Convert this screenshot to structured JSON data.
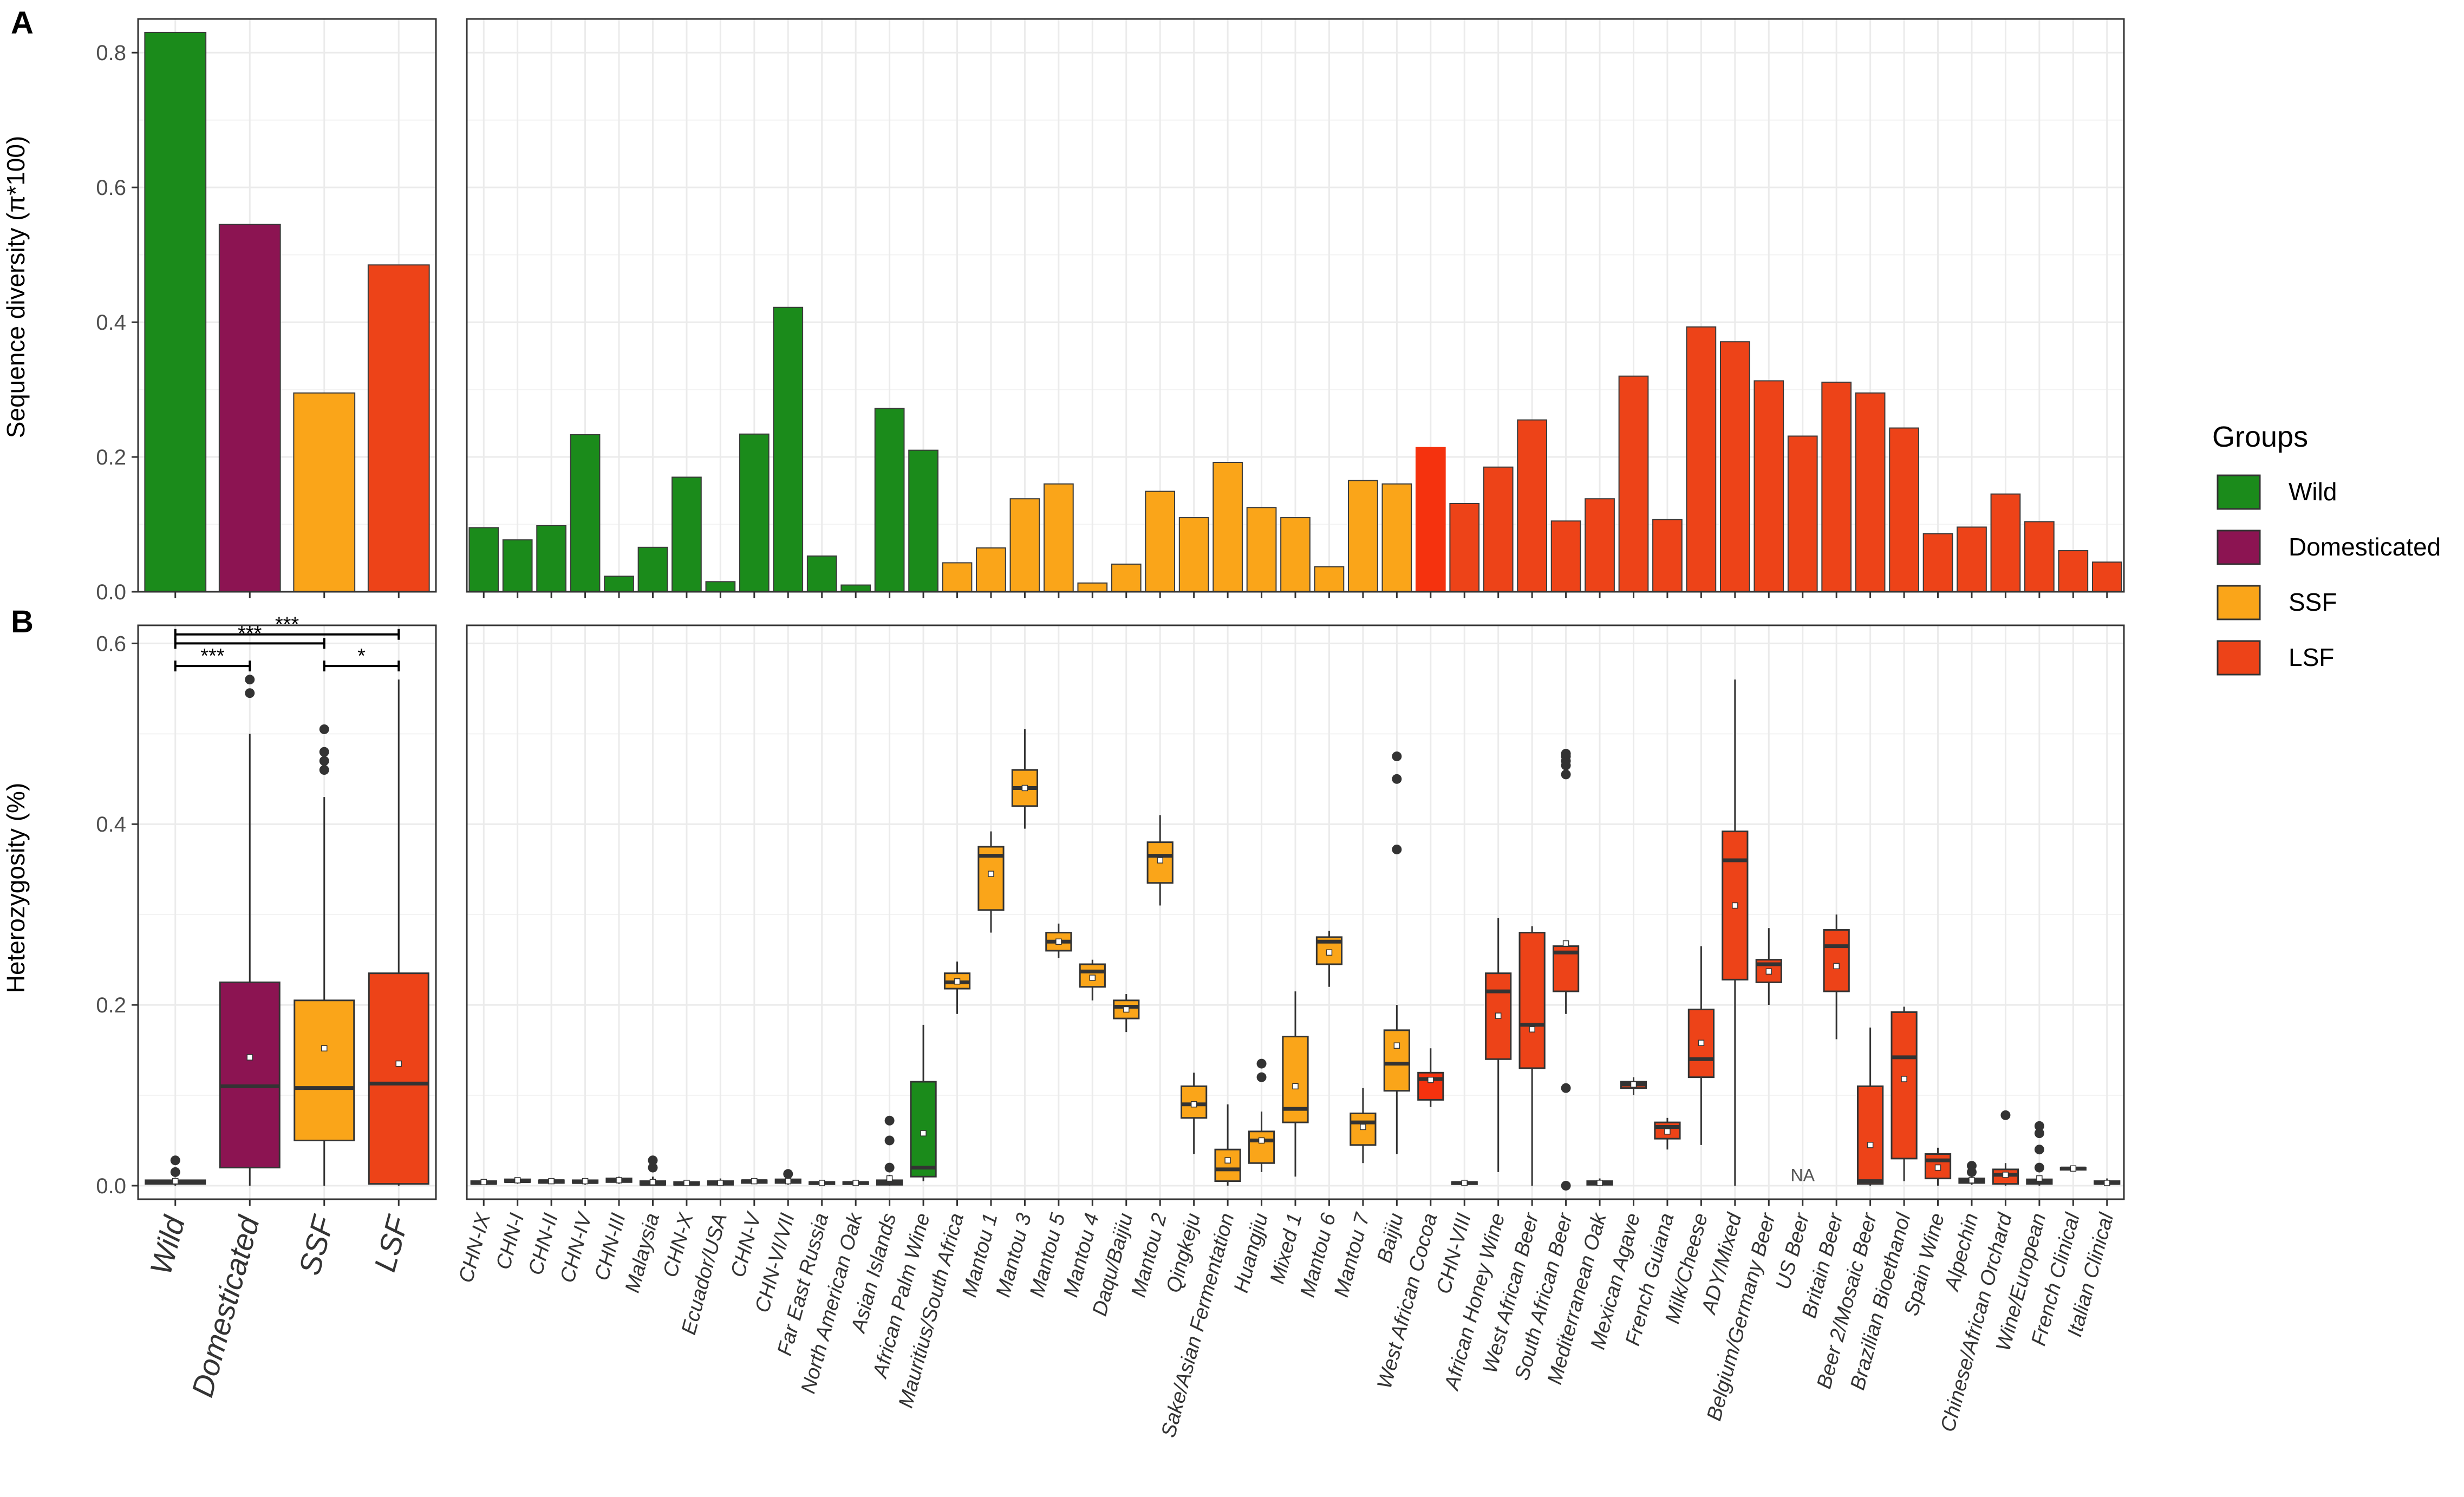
{
  "chart_data": [
    {
      "type": "bar",
      "panel_label": "A",
      "ylabel": "Sequence diversity (π*100)",
      "ylim": [
        0,
        0.85
      ],
      "yticks": [
        "0.0",
        "0.2",
        "0.4",
        "0.6",
        "0.8"
      ],
      "grid": true,
      "categories": [
        "Wild",
        "Domesticated",
        "SSF",
        "LSF"
      ],
      "values": [
        0.83,
        0.545,
        0.295,
        0.485
      ]
    },
    {
      "type": "bar",
      "ylim": [
        0,
        0.85
      ],
      "grid": true,
      "categories": [
        "CHN-IX",
        "CHN-I",
        "CHN-II",
        "CHN-IV",
        "CHN-III",
        "Malaysia",
        "CHN-X",
        "Ecuador/USA",
        "CHN-V",
        "CHN-VI/VII",
        "Far East Russia",
        "North American Oak",
        "Asian Islands",
        "African Palm Wine",
        "Mauritius/South Africa",
        "Mantou 1",
        "Mantou 3",
        "Mantou 5",
        "Mantou 4",
        "Daqu/Baijiu",
        "Mantou 2",
        "Qingkeju",
        "Sake/Asian Fermentation",
        "Huangjiu",
        "Mixed 1",
        "Mantou 6",
        "Mantou 7",
        "Baijiu",
        "West African Cocoa",
        "CHN-VIII",
        "African Honey Wine",
        "West African Beer",
        "South African Beer",
        "Mediterranean Oak",
        "Mexican Agave",
        "French Guiana",
        "Milk/Cheese",
        "ADY/Mixed",
        "Belgium/Germany Beer",
        "US Beer",
        "Britain Beer",
        "Beer 2/Mosaic Beer",
        "Brazilian Bioethanol",
        "Spain Wine",
        "Alpechin",
        "Chinese/African Orchard",
        "Wine/European",
        "French Clinical",
        "Italian Clinical"
      ],
      "values": [
        0.095,
        0.077,
        0.098,
        0.233,
        0.023,
        0.066,
        0.17,
        0.015,
        0.234,
        0.422,
        0.053,
        0.01,
        0.272,
        0.21,
        0.043,
        0.065,
        0.138,
        0.16,
        0.013,
        0.041,
        0.149,
        0.11,
        0.192,
        0.125,
        0.11,
        0.037,
        0.165,
        0.16,
        0.214,
        0.131,
        0.185,
        0.255,
        0.105,
        0.138,
        0.32,
        0.107,
        0.393,
        0.371,
        0.313,
        0.231,
        0.311,
        0.295,
        0.243,
        0.086,
        0.096,
        0.145,
        0.104,
        0.061,
        0.044
      ],
      "groups": [
        "Wild",
        "Wild",
        "Wild",
        "Wild",
        "Wild",
        "Wild",
        "Wild",
        "Wild",
        "Wild",
        "Wild",
        "Wild",
        "Wild",
        "Wild",
        "Wild",
        "SSF",
        "SSF",
        "SSF",
        "SSF",
        "SSF",
        "SSF",
        "SSF",
        "SSF",
        "SSF",
        "SSF",
        "SSF",
        "SSF",
        "SSF",
        "SSF",
        "LSF",
        "LSF",
        "LSF",
        "LSF",
        "LSF",
        "LSF",
        "LSF",
        "LSF",
        "LSF",
        "LSF",
        "LSF",
        "LSF",
        "LSF",
        "LSF",
        "LSF",
        "LSF",
        "LSF",
        "LSF",
        "LSF",
        "LSF",
        "LSF"
      ]
    },
    {
      "type": "box",
      "panel_label": "B",
      "ylabel": "Heterozygosity (%)",
      "ylim": [
        -0.015,
        0.62
      ],
      "yticks": [
        "0.0",
        "0.2",
        "0.4",
        "0.6"
      ],
      "grid": true,
      "categories": [
        "Wild",
        "Domesticated",
        "SSF",
        "LSF"
      ],
      "boxes": [
        {
          "min": 0,
          "q1": 0.002,
          "median": 0.004,
          "q3": 0.006,
          "max": 0.009,
          "mean": 0.005,
          "outliers": [
            0.015,
            0.028
          ]
        },
        {
          "min": 0,
          "q1": 0.02,
          "median": 0.11,
          "q3": 0.225,
          "max": 0.5,
          "mean": 0.142,
          "outliers": [
            0.545,
            0.56
          ]
        },
        {
          "min": 0,
          "q1": 0.05,
          "median": 0.108,
          "q3": 0.205,
          "max": 0.43,
          "mean": 0.152,
          "outliers": [
            0.46,
            0.47,
            0.48,
            0.505
          ]
        },
        {
          "min": 0,
          "q1": 0.002,
          "median": 0.113,
          "q3": 0.235,
          "max": 0.56,
          "mean": 0.135,
          "outliers": []
        }
      ],
      "significance": [
        {
          "from": 0,
          "to": 3,
          "label": "***",
          "y": 0.61
        },
        {
          "from": 0,
          "to": 2,
          "label": "***",
          "y": 0.6
        },
        {
          "from": 0,
          "to": 1,
          "label": "***",
          "y": 0.575
        },
        {
          "from": 2,
          "to": 3,
          "label": "*",
          "y": 0.575
        }
      ]
    },
    {
      "type": "box",
      "ylim": [
        -0.015,
        0.62
      ],
      "grid": true,
      "na_label": "NA",
      "boxes": [
        {
          "min": 0.001,
          "q1": 0.002,
          "median": 0.003,
          "q3": 0.005,
          "max": 0.007,
          "mean": 0.004,
          "outliers": []
        },
        {
          "min": 0.002,
          "q1": 0.004,
          "median": 0.005,
          "q3": 0.007,
          "max": 0.009,
          "mean": 0.006,
          "outliers": []
        },
        {
          "min": 0.002,
          "q1": 0.003,
          "median": 0.005,
          "q3": 0.006,
          "max": 0.008,
          "mean": 0.005,
          "outliers": []
        },
        {
          "min": 0.001,
          "q1": 0.003,
          "median": 0.004,
          "q3": 0.006,
          "max": 0.008,
          "mean": 0.005,
          "outliers": []
        },
        {
          "min": 0.002,
          "q1": 0.004,
          "median": 0.006,
          "q3": 0.008,
          "max": 0.01,
          "mean": 0.006,
          "outliers": []
        },
        {
          "min": 0,
          "q1": 0.001,
          "median": 0.002,
          "q3": 0.005,
          "max": 0.01,
          "mean": 0.004,
          "outliers": [
            0.02,
            0.028
          ]
        },
        {
          "min": 0,
          "q1": 0.001,
          "median": 0.002,
          "q3": 0.004,
          "max": 0.006,
          "mean": 0.003,
          "outliers": []
        },
        {
          "min": 0,
          "q1": 0.001,
          "median": 0.003,
          "q3": 0.005,
          "max": 0.008,
          "mean": 0.003,
          "outliers": []
        },
        {
          "min": 0.002,
          "q1": 0.003,
          "median": 0.005,
          "q3": 0.006,
          "max": 0.008,
          "mean": 0.005,
          "outliers": []
        },
        {
          "min": 0.001,
          "q1": 0.003,
          "median": 0.005,
          "q3": 0.007,
          "max": 0.009,
          "mean": 0.005,
          "outliers": [
            0.013
          ]
        },
        {
          "min": 0.001,
          "q1": 0.002,
          "median": 0.003,
          "q3": 0.004,
          "max": 0.005,
          "mean": 0.003,
          "outliers": []
        },
        {
          "min": 0.001,
          "q1": 0.002,
          "median": 0.003,
          "q3": 0.004,
          "max": 0.005,
          "mean": 0.003,
          "outliers": []
        },
        {
          "min": 0,
          "q1": 0.001,
          "median": 0.003,
          "q3": 0.006,
          "max": 0.012,
          "mean": 0.008,
          "outliers": [
            0.02,
            0.05,
            0.072
          ]
        },
        {
          "min": 0.005,
          "q1": 0.01,
          "median": 0.02,
          "q3": 0.115,
          "max": 0.178,
          "mean": 0.058,
          "outliers": []
        },
        {
          "min": 0.19,
          "q1": 0.218,
          "median": 0.225,
          "q3": 0.235,
          "max": 0.248,
          "mean": 0.226,
          "outliers": []
        },
        {
          "min": 0.28,
          "q1": 0.305,
          "median": 0.365,
          "q3": 0.375,
          "max": 0.392,
          "mean": 0.345,
          "outliers": []
        },
        {
          "min": 0.395,
          "q1": 0.42,
          "median": 0.44,
          "q3": 0.46,
          "max": 0.505,
          "mean": 0.44,
          "outliers": []
        },
        {
          "min": 0.252,
          "q1": 0.26,
          "median": 0.27,
          "q3": 0.28,
          "max": 0.29,
          "mean": 0.27,
          "outliers": []
        },
        {
          "min": 0.205,
          "q1": 0.22,
          "median": 0.237,
          "q3": 0.245,
          "max": 0.25,
          "mean": 0.23,
          "outliers": []
        },
        {
          "min": 0.17,
          "q1": 0.185,
          "median": 0.198,
          "q3": 0.205,
          "max": 0.212,
          "mean": 0.195,
          "outliers": []
        },
        {
          "min": 0.31,
          "q1": 0.335,
          "median": 0.365,
          "q3": 0.38,
          "max": 0.41,
          "mean": 0.36,
          "outliers": []
        },
        {
          "min": 0.035,
          "q1": 0.075,
          "median": 0.09,
          "q3": 0.11,
          "max": 0.125,
          "mean": 0.09,
          "outliers": []
        },
        {
          "min": 0,
          "q1": 0.005,
          "median": 0.018,
          "q3": 0.04,
          "max": 0.09,
          "mean": 0.028,
          "outliers": []
        },
        {
          "min": 0.015,
          "q1": 0.025,
          "median": 0.05,
          "q3": 0.06,
          "max": 0.082,
          "mean": 0.05,
          "outliers": [
            0.12,
            0.135
          ]
        },
        {
          "min": 0.01,
          "q1": 0.07,
          "median": 0.085,
          "q3": 0.165,
          "max": 0.215,
          "mean": 0.11,
          "outliers": []
        },
        {
          "min": 0.22,
          "q1": 0.245,
          "median": 0.27,
          "q3": 0.275,
          "max": 0.282,
          "mean": 0.258,
          "outliers": []
        },
        {
          "min": 0.025,
          "q1": 0.045,
          "median": 0.07,
          "q3": 0.08,
          "max": 0.108,
          "mean": 0.065,
          "outliers": []
        },
        {
          "min": 0.035,
          "q1": 0.105,
          "median": 0.135,
          "q3": 0.172,
          "max": 0.2,
          "mean": 0.155,
          "outliers": [
            0.372,
            0.45,
            0.475
          ]
        },
        {
          "min": 0.087,
          "q1": 0.095,
          "median": 0.118,
          "q3": 0.125,
          "max": 0.152,
          "mean": 0.117,
          "outliers": []
        },
        {
          "min": 0.001,
          "q1": 0.002,
          "median": 0.003,
          "q3": 0.004,
          "max": 0.005,
          "mean": 0.003,
          "outliers": []
        },
        {
          "min": 0.015,
          "q1": 0.14,
          "median": 0.215,
          "q3": 0.235,
          "max": 0.296,
          "mean": 0.188,
          "outliers": []
        },
        {
          "min": 0,
          "q1": 0.13,
          "median": 0.178,
          "q3": 0.28,
          "max": 0.287,
          "mean": 0.173,
          "outliers": []
        },
        {
          "min": 0.19,
          "q1": 0.215,
          "median": 0.258,
          "q3": 0.265,
          "max": 0.27,
          "mean": 0.268,
          "outliers": [
            0.0,
            0.108,
            0.455,
            0.465,
            0.47,
            0.475,
            0.478
          ]
        },
        {
          "min": 0,
          "q1": 0.001,
          "median": 0.003,
          "q3": 0.005,
          "max": 0.008,
          "mean": 0.003,
          "outliers": []
        },
        {
          "min": 0.1,
          "q1": 0.108,
          "median": 0.112,
          "q3": 0.115,
          "max": 0.12,
          "mean": 0.112,
          "outliers": []
        },
        {
          "min": 0.04,
          "q1": 0.052,
          "median": 0.065,
          "q3": 0.07,
          "max": 0.075,
          "mean": 0.06,
          "outliers": []
        },
        {
          "min": 0.045,
          "q1": 0.12,
          "median": 0.14,
          "q3": 0.195,
          "max": 0.265,
          "mean": 0.158,
          "outliers": []
        },
        {
          "min": 0,
          "q1": 0.228,
          "median": 0.36,
          "q3": 0.392,
          "max": 0.56,
          "mean": 0.31,
          "outliers": []
        },
        {
          "min": 0.2,
          "q1": 0.225,
          "median": 0.245,
          "q3": 0.25,
          "max": 0.285,
          "mean": 0.237,
          "outliers": []
        },
        null,
        {
          "min": 0.162,
          "q1": 0.215,
          "median": 0.265,
          "q3": 0.283,
          "max": 0.3,
          "mean": 0.243,
          "outliers": []
        },
        {
          "min": 0,
          "q1": 0.002,
          "median": 0.005,
          "q3": 0.11,
          "max": 0.175,
          "mean": 0.045,
          "outliers": []
        },
        {
          "min": 0.005,
          "q1": 0.03,
          "median": 0.142,
          "q3": 0.192,
          "max": 0.198,
          "mean": 0.118,
          "outliers": []
        },
        {
          "min": 0,
          "q1": 0.008,
          "median": 0.028,
          "q3": 0.035,
          "max": 0.042,
          "mean": 0.02,
          "outliers": []
        },
        {
          "min": 0.001,
          "q1": 0.003,
          "median": 0.006,
          "q3": 0.008,
          "max": 0.011,
          "mean": 0.006,
          "outliers": [
            0.015,
            0.022
          ]
        },
        {
          "min": 0,
          "q1": 0.002,
          "median": 0.012,
          "q3": 0.018,
          "max": 0.025,
          "mean": 0.012,
          "outliers": [
            0.078
          ]
        },
        {
          "min": 0,
          "q1": 0.002,
          "median": 0.004,
          "q3": 0.007,
          "max": 0.01,
          "mean": 0.008,
          "outliers": [
            0.02,
            0.04,
            0.058,
            0.066
          ]
        },
        {
          "min": 0.017,
          "q1": 0.018,
          "median": 0.019,
          "q3": 0.02,
          "max": 0.021,
          "mean": 0.019,
          "outliers": []
        },
        {
          "min": 0,
          "q1": 0.002,
          "median": 0.003,
          "q3": 0.005,
          "max": 0.008,
          "mean": 0.003,
          "outliers": []
        }
      ]
    }
  ],
  "legend": {
    "title": "Groups",
    "placement": "right",
    "entries": [
      {
        "label": "Wild",
        "color": "#1b8b1b"
      },
      {
        "label": "Domesticated",
        "color": "#8c1452"
      },
      {
        "label": "SSF",
        "color": "#faa519"
      },
      {
        "label": "LSF",
        "color": "#ed4318"
      }
    ]
  },
  "colors": {
    "Wild": "#1b8b1b",
    "Domesticated": "#8c1452",
    "SSF": "#faa519",
    "LSF": "#ed4318",
    "West African Cocoa": "#f5320e",
    "grid": "#ebebeb",
    "frame": "#333333"
  }
}
